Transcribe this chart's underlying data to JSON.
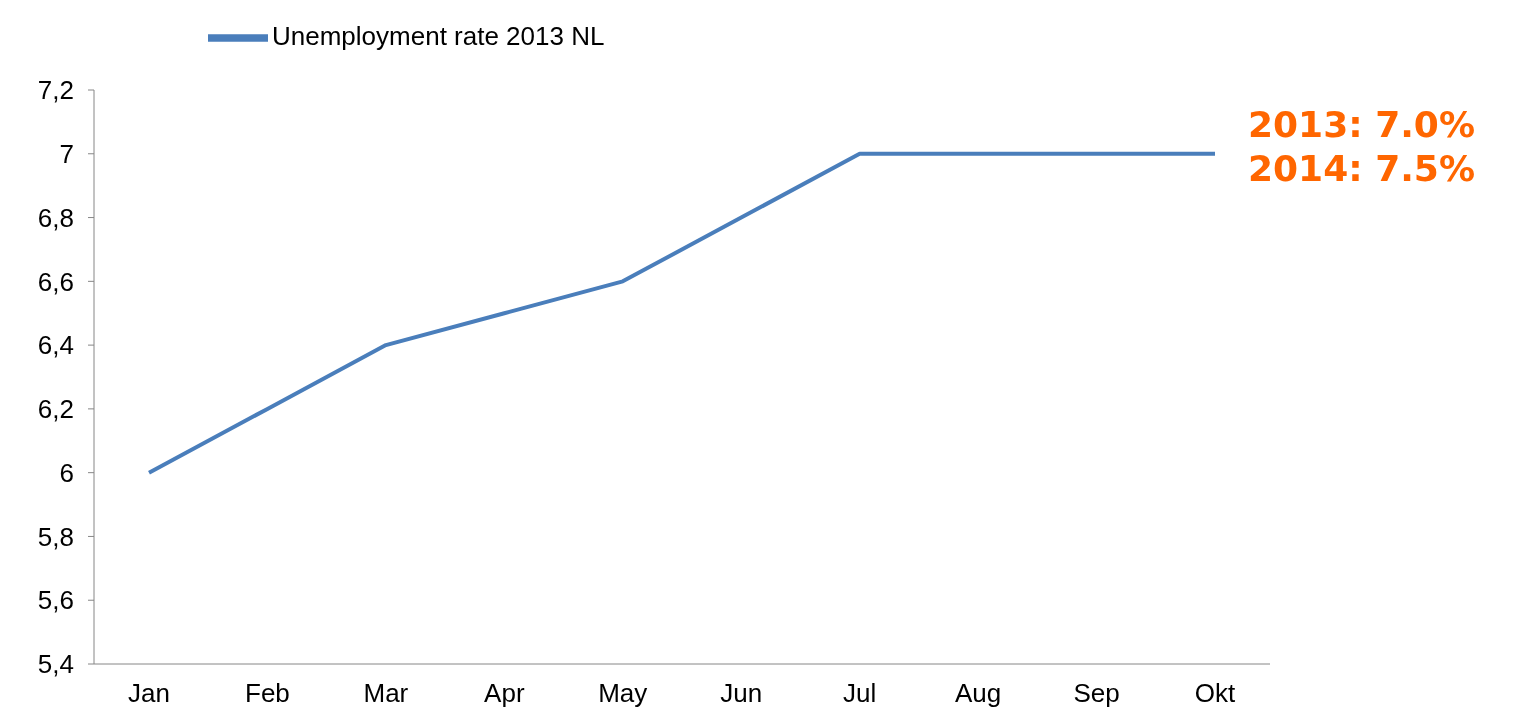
{
  "chart_data": {
    "type": "line",
    "categories": [
      "Jan",
      "Feb",
      "Mar",
      "Apr",
      "May",
      "Jun",
      "Jul",
      "Aug",
      "Sep",
      "Okt"
    ],
    "series": [
      {
        "name": "Unemployment rate 2013 NL",
        "color": "#4a7ebb",
        "values": [
          6.0,
          6.2,
          6.4,
          6.5,
          6.6,
          6.8,
          7.0,
          7.0,
          7.0,
          7.0
        ]
      }
    ],
    "ylim": [
      5.4,
      7.2
    ],
    "yticks": [
      {
        "value": 5.4,
        "label": "5,4"
      },
      {
        "value": 5.6,
        "label": "5,6"
      },
      {
        "value": 5.8,
        "label": "5,8"
      },
      {
        "value": 6,
        "label": "6"
      },
      {
        "value": 6.2,
        "label": "6,2"
      },
      {
        "value": 6.4,
        "label": "6,4"
      },
      {
        "value": 6.6,
        "label": "6,6"
      },
      {
        "value": 6.8,
        "label": "6,8"
      },
      {
        "value": 7,
        "label": "7"
      },
      {
        "value": 7.2,
        "label": "7,2"
      }
    ],
    "annotations": [
      "2013: 7.0%",
      "2014: 7.5%"
    ],
    "grid": false,
    "legend": "top left",
    "marker": "none",
    "line_style": "solid"
  }
}
